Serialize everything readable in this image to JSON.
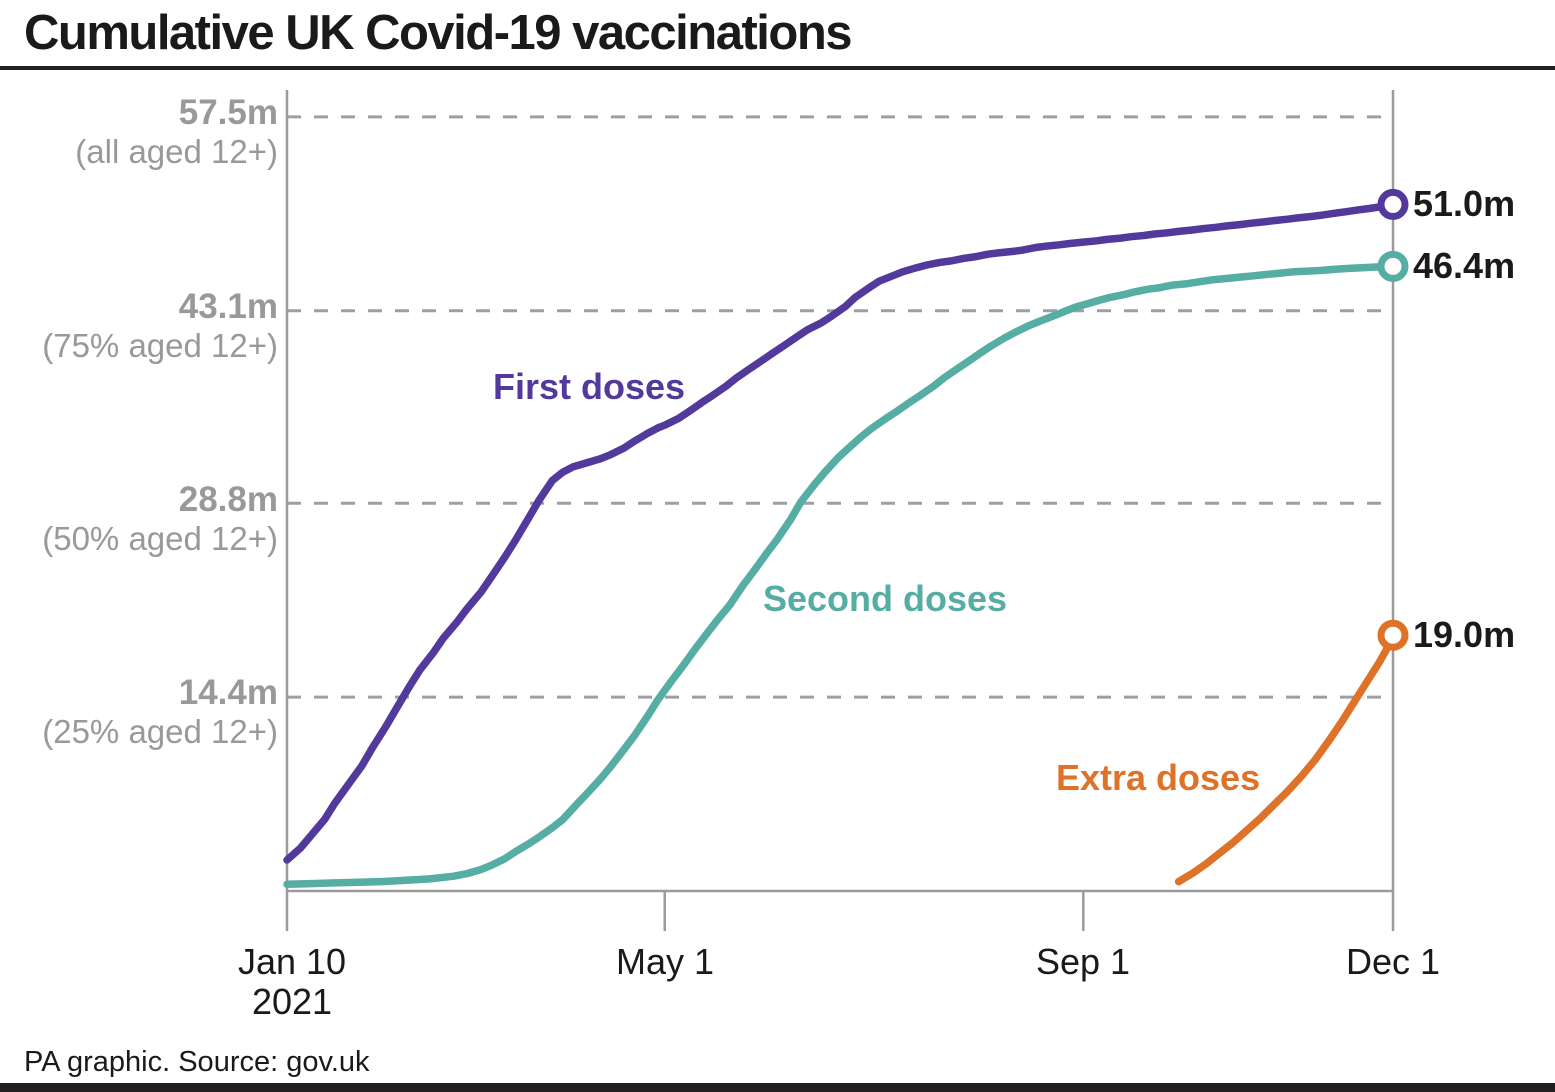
{
  "title": "Cumulative UK Covid-19 vaccinations",
  "footer": "PA graphic. Source: gov.uk",
  "colors": {
    "first_doses": "#53399b",
    "second_doses": "#55ada3",
    "extra_doses": "#dd7228",
    "axis": "#9b9b9b",
    "gridline": "#9aa0a3",
    "axis_text": "#97999b",
    "text": "#1a1a1a"
  },
  "y_axis": {
    "labels": [
      {
        "value": "57.5m",
        "note": "(all aged 12+)",
        "m": 57.5
      },
      {
        "value": "43.1m",
        "note": "(75% aged 12+)",
        "m": 43.1
      },
      {
        "value": "28.8m",
        "note": "(50% aged 12+)",
        "m": 28.8
      },
      {
        "value": "14.4m",
        "note": "(25% aged 12+)",
        "m": 14.4
      }
    ]
  },
  "x_axis": {
    "ticks": [
      {
        "label": "Jan 10",
        "sublabel": "2021",
        "day": 0
      },
      {
        "label": "May 1",
        "day": 111
      },
      {
        "label": "Sep 1",
        "day": 234
      },
      {
        "label": "Dec 1",
        "day": 325
      }
    ]
  },
  "chart_data": {
    "type": "line",
    "title": "Cumulative UK Covid-19 vaccinations",
    "x_unit": "days since Jan 10 2021",
    "x_range": [
      0,
      325
    ],
    "ylim": [
      0,
      59.5
    ],
    "y_unit": "million doses",
    "grid": "horizontal dashed",
    "gridlines_m": [
      57.5,
      43.1,
      28.8,
      14.4
    ],
    "series": [
      {
        "name": "First doses",
        "color": "#53399b",
        "end_label": "51.0m",
        "end_value": 51.0,
        "points": [
          [
            0,
            2.3
          ],
          [
            4,
            3.2
          ],
          [
            7,
            4.1
          ],
          [
            11,
            5.3
          ],
          [
            14,
            6.5
          ],
          [
            18,
            7.9
          ],
          [
            22,
            9.3
          ],
          [
            25,
            10.6
          ],
          [
            29,
            12.2
          ],
          [
            32,
            13.5
          ],
          [
            36,
            15.2
          ],
          [
            39,
            16.4
          ],
          [
            43,
            17.7
          ],
          [
            46,
            18.8
          ],
          [
            50,
            20.0
          ],
          [
            53,
            21.0
          ],
          [
            57,
            22.2
          ],
          [
            60,
            23.3
          ],
          [
            64,
            24.8
          ],
          [
            67,
            26.0
          ],
          [
            71,
            27.7
          ],
          [
            74,
            29.0
          ],
          [
            78,
            30.5
          ],
          [
            81,
            31.1
          ],
          [
            84,
            31.5
          ],
          [
            88,
            31.8
          ],
          [
            92,
            32.1
          ],
          [
            95,
            32.4
          ],
          [
            99,
            32.9
          ],
          [
            102,
            33.4
          ],
          [
            106,
            34.0
          ],
          [
            109,
            34.4
          ],
          [
            111,
            34.6
          ],
          [
            115,
            35.1
          ],
          [
            118,
            35.6
          ],
          [
            122,
            36.3
          ],
          [
            125,
            36.8
          ],
          [
            129,
            37.5
          ],
          [
            132,
            38.1
          ],
          [
            136,
            38.8
          ],
          [
            139,
            39.3
          ],
          [
            143,
            40.0
          ],
          [
            146,
            40.5
          ],
          [
            150,
            41.2
          ],
          [
            153,
            41.7
          ],
          [
            157,
            42.2
          ],
          [
            160,
            42.7
          ],
          [
            164,
            43.4
          ],
          [
            167,
            44.1
          ],
          [
            171,
            44.8
          ],
          [
            174,
            45.3
          ],
          [
            178,
            45.7
          ],
          [
            181,
            46.0
          ],
          [
            185,
            46.3
          ],
          [
            188,
            46.5
          ],
          [
            192,
            46.7
          ],
          [
            195,
            46.8
          ],
          [
            199,
            47.0
          ],
          [
            202,
            47.1
          ],
          [
            206,
            47.3
          ],
          [
            209,
            47.4
          ],
          [
            213,
            47.5
          ],
          [
            216,
            47.6
          ],
          [
            220,
            47.8
          ],
          [
            223,
            47.9
          ],
          [
            227,
            48.0
          ],
          [
            230,
            48.1
          ],
          [
            234,
            48.2
          ],
          [
            238,
            48.3
          ],
          [
            241,
            48.4
          ],
          [
            245,
            48.5
          ],
          [
            248,
            48.6
          ],
          [
            252,
            48.7
          ],
          [
            255,
            48.8
          ],
          [
            259,
            48.9
          ],
          [
            262,
            49.0
          ],
          [
            266,
            49.1
          ],
          [
            269,
            49.2
          ],
          [
            273,
            49.3
          ],
          [
            276,
            49.4
          ],
          [
            280,
            49.5
          ],
          [
            283,
            49.6
          ],
          [
            287,
            49.7
          ],
          [
            290,
            49.8
          ],
          [
            294,
            49.9
          ],
          [
            297,
            50.0
          ],
          [
            301,
            50.1
          ],
          [
            304,
            50.2
          ],
          [
            308,
            50.35
          ],
          [
            311,
            50.45
          ],
          [
            315,
            50.6
          ],
          [
            318,
            50.7
          ],
          [
            322,
            50.85
          ],
          [
            325,
            51.0
          ]
        ]
      },
      {
        "name": "Second doses",
        "color": "#55ada3",
        "end_label": "46.4m",
        "end_value": 46.4,
        "points": [
          [
            0,
            0.5
          ],
          [
            7,
            0.55
          ],
          [
            14,
            0.6
          ],
          [
            21,
            0.65
          ],
          [
            28,
            0.7
          ],
          [
            35,
            0.8
          ],
          [
            42,
            0.9
          ],
          [
            49,
            1.1
          ],
          [
            53,
            1.3
          ],
          [
            57,
            1.6
          ],
          [
            60,
            1.9
          ],
          [
            64,
            2.4
          ],
          [
            67,
            2.9
          ],
          [
            71,
            3.5
          ],
          [
            74,
            4.0
          ],
          [
            78,
            4.7
          ],
          [
            81,
            5.3
          ],
          [
            85,
            6.4
          ],
          [
            88,
            7.2
          ],
          [
            92,
            8.3
          ],
          [
            95,
            9.2
          ],
          [
            99,
            10.5
          ],
          [
            102,
            11.5
          ],
          [
            106,
            13.0
          ],
          [
            109,
            14.2
          ],
          [
            113,
            15.6
          ],
          [
            116,
            16.6
          ],
          [
            120,
            18.0
          ],
          [
            123,
            19.0
          ],
          [
            127,
            20.3
          ],
          [
            130,
            21.2
          ],
          [
            134,
            22.7
          ],
          [
            137,
            23.7
          ],
          [
            141,
            25.1
          ],
          [
            144,
            26.1
          ],
          [
            148,
            27.6
          ],
          [
            151,
            28.9
          ],
          [
            155,
            30.2
          ],
          [
            158,
            31.1
          ],
          [
            162,
            32.2
          ],
          [
            165,
            32.9
          ],
          [
            169,
            33.8
          ],
          [
            172,
            34.4
          ],
          [
            176,
            35.1
          ],
          [
            179,
            35.6
          ],
          [
            183,
            36.3
          ],
          [
            186,
            36.8
          ],
          [
            190,
            37.5
          ],
          [
            193,
            38.1
          ],
          [
            197,
            38.8
          ],
          [
            200,
            39.3
          ],
          [
            204,
            40.0
          ],
          [
            207,
            40.5
          ],
          [
            211,
            41.1
          ],
          [
            214,
            41.5
          ],
          [
            218,
            42.0
          ],
          [
            221,
            42.3
          ],
          [
            225,
            42.7
          ],
          [
            228,
            43.0
          ],
          [
            232,
            43.4
          ],
          [
            235,
            43.6
          ],
          [
            239,
            43.9
          ],
          [
            242,
            44.1
          ],
          [
            246,
            44.3
          ],
          [
            249,
            44.5
          ],
          [
            253,
            44.7
          ],
          [
            256,
            44.8
          ],
          [
            260,
            45.0
          ],
          [
            264,
            45.1
          ],
          [
            268,
            45.25
          ],
          [
            272,
            45.4
          ],
          [
            276,
            45.5
          ],
          [
            280,
            45.6
          ],
          [
            284,
            45.7
          ],
          [
            288,
            45.8
          ],
          [
            292,
            45.9
          ],
          [
            296,
            46.0
          ],
          [
            300,
            46.05
          ],
          [
            304,
            46.1
          ],
          [
            308,
            46.18
          ],
          [
            312,
            46.25
          ],
          [
            316,
            46.3
          ],
          [
            320,
            46.35
          ],
          [
            325,
            46.4
          ]
        ]
      },
      {
        "name": "Extra doses",
        "color": "#dd7228",
        "end_label": "19.0m",
        "end_value": 19.0,
        "points": [
          [
            262,
            0.7
          ],
          [
            266,
            1.3
          ],
          [
            270,
            2.0
          ],
          [
            274,
            2.8
          ],
          [
            278,
            3.6
          ],
          [
            282,
            4.5
          ],
          [
            286,
            5.4
          ],
          [
            290,
            6.4
          ],
          [
            294,
            7.4
          ],
          [
            298,
            8.5
          ],
          [
            302,
            9.7
          ],
          [
            306,
            11.1
          ],
          [
            310,
            12.6
          ],
          [
            314,
            14.2
          ],
          [
            318,
            15.8
          ],
          [
            321,
            17.0
          ],
          [
            323,
            17.9
          ],
          [
            325,
            19.0
          ]
        ]
      }
    ],
    "legend_position": "labels beside lines"
  }
}
